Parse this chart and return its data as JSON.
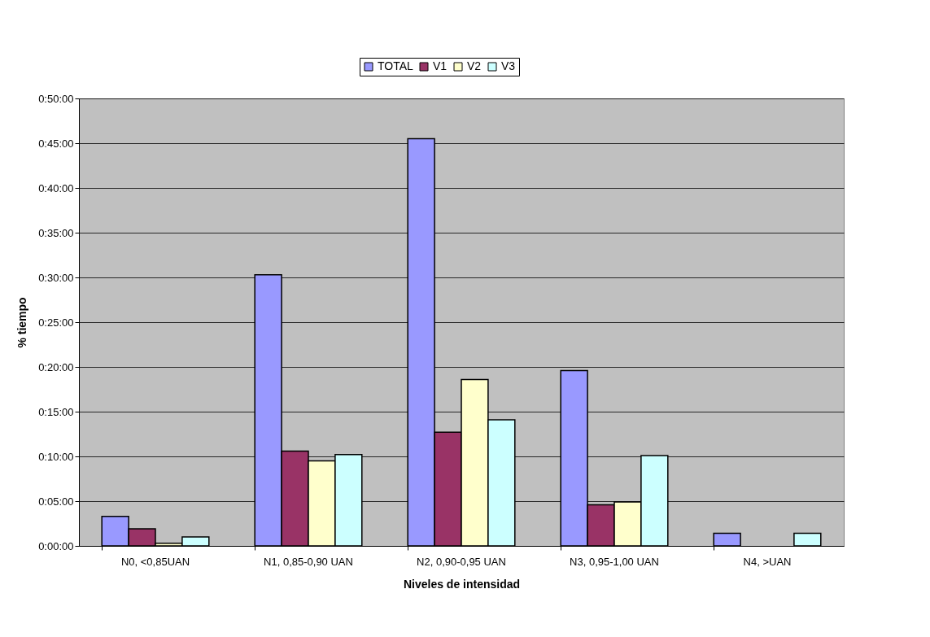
{
  "chart_data": {
    "type": "bar",
    "xlabel": "Niveles de intensidad",
    "ylabel": "% tiempo",
    "categories": [
      "N0, <0,85UAN",
      "N1, 0,85-0,90 UAN",
      "N2, 0,90-0,95 UAN",
      "N3, 0,95-1,00 UAN",
      "N4, >UAN"
    ],
    "series": [
      {
        "name": "TOTAL",
        "color": "#9999ff",
        "values": [
          3.3,
          30.3,
          45.5,
          19.6,
          1.4
        ]
      },
      {
        "name": "V1",
        "color": "#993366",
        "values": [
          1.9,
          10.6,
          12.7,
          4.6,
          0
        ]
      },
      {
        "name": "V2",
        "color": "#ffffcc",
        "values": [
          0.3,
          9.5,
          18.6,
          4.9,
          0
        ]
      },
      {
        "name": "V3",
        "color": "#ccffff",
        "values": [
          1.0,
          10.2,
          14.1,
          10.1,
          1.4
        ]
      }
    ],
    "ylim": [
      0,
      50
    ],
    "yticks": [
      {
        "value": 0,
        "label": "0:00:00"
      },
      {
        "value": 5,
        "label": "0:05:00"
      },
      {
        "value": 10,
        "label": "0:10:00"
      },
      {
        "value": 15,
        "label": "0:15:00"
      },
      {
        "value": 20,
        "label": "0:20:00"
      },
      {
        "value": 25,
        "label": "0:25:00"
      },
      {
        "value": 30,
        "label": "0:30:00"
      },
      {
        "value": 35,
        "label": "0:35:00"
      },
      {
        "value": 40,
        "label": "0:40:00"
      },
      {
        "value": 45,
        "label": "0:45:00"
      },
      {
        "value": 50,
        "label": "0:50:00"
      }
    ],
    "grid": "y",
    "legend": "top"
  }
}
